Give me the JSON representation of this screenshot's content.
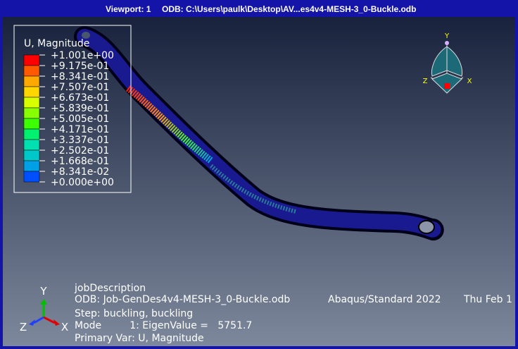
{
  "title_bar": {
    "viewport": "Viewport: 1",
    "odb": "ODB: C:\\Users\\paulk\\Desktop\\AV...es4v4-MESH-3_0-Buckle.odb"
  },
  "legend": {
    "title": "U, Magnitude",
    "labels": [
      "+1.001e+00",
      "+9.175e-01",
      "+8.341e-01",
      "+7.507e-01",
      "+6.673e-01",
      "+5.839e-01",
      "+5.005e-01",
      "+4.171e-01",
      "+3.337e-01",
      "+2.502e-01",
      "+1.668e-01",
      "+8.341e-02",
      "+0.000e+00"
    ],
    "colors": [
      "#ff0000",
      "#ff5a00",
      "#ffa800",
      "#ffd600",
      "#d8ff00",
      "#88ff00",
      "#3cff00",
      "#00f070",
      "#00e0b0",
      "#00c8c8",
      "#00a0e6",
      "#0050ff",
      "#0000ff"
    ]
  },
  "triad_top": {
    "y": "Y",
    "z": "Z",
    "x": "X"
  },
  "triad_bottom": {
    "y": "Y",
    "z": "Z",
    "x": "X"
  },
  "info": {
    "line1": "jobDescription",
    "odb": "ODB: Job-GenDes4v4-MESH-3_0-Buckle.odb",
    "solver": "Abaqus/Standard 2022",
    "date": "Thu Feb 1",
    "step": "Step: buckling, buckling",
    "mode": "Mode         1: EigenValue =   5751.7",
    "primary": "Primary Var: U, Magnitude"
  }
}
